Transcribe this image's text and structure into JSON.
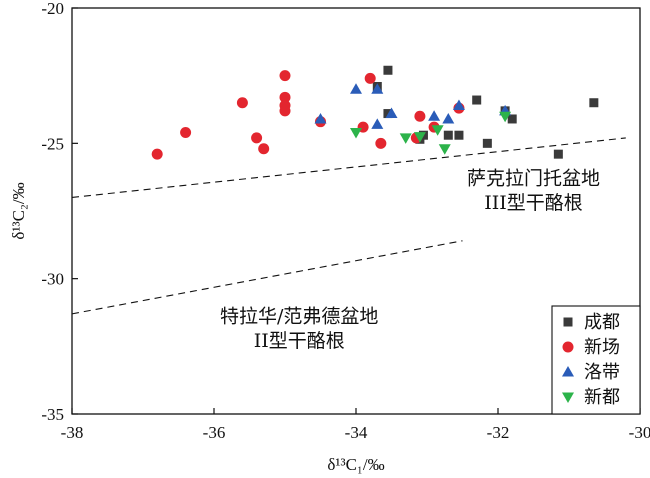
{
  "chart_data": {
    "type": "scatter",
    "xlabel": "δ¹³C₁/‰",
    "ylabel": "δ¹³C₂/‰",
    "xlim": [
      -38,
      -30
    ],
    "ylim": [
      -35,
      -20
    ],
    "xticks": [
      -38,
      -36,
      -34,
      -32,
      -30
    ],
    "yticks": [
      -35,
      -30,
      -25,
      -20
    ],
    "legend_position": "bottom-right",
    "series": [
      {
        "name": "成都",
        "marker": "square",
        "color": "#3a3a3a",
        "points": [
          [
            -33.55,
            -22.3
          ],
          [
            -33.7,
            -22.9
          ],
          [
            -33.55,
            -23.9
          ],
          [
            -33.1,
            -24.85
          ],
          [
            -33.05,
            -24.7
          ],
          [
            -32.7,
            -24.7
          ],
          [
            -32.55,
            -24.7
          ],
          [
            -32.3,
            -23.4
          ],
          [
            -32.15,
            -25.0
          ],
          [
            -31.9,
            -23.8
          ],
          [
            -31.8,
            -24.1
          ],
          [
            -31.15,
            -25.4
          ],
          [
            -30.65,
            -23.5
          ]
        ]
      },
      {
        "name": "新场",
        "marker": "circle",
        "color": "#e3262f",
        "points": [
          [
            -36.8,
            -25.4
          ],
          [
            -36.4,
            -24.6
          ],
          [
            -35.6,
            -23.5
          ],
          [
            -35.4,
            -24.8
          ],
          [
            -35.3,
            -25.2
          ],
          [
            -35.0,
            -22.5
          ],
          [
            -35.0,
            -23.3
          ],
          [
            -35.0,
            -23.6
          ],
          [
            -35.0,
            -23.8
          ],
          [
            -34.5,
            -24.2
          ],
          [
            -33.9,
            -24.4
          ],
          [
            -33.8,
            -22.6
          ],
          [
            -33.65,
            -25.0
          ],
          [
            -33.15,
            -24.8
          ],
          [
            -33.1,
            -24.0
          ],
          [
            -32.9,
            -24.4
          ],
          [
            -32.55,
            -23.7
          ]
        ]
      },
      {
        "name": "洛带",
        "marker": "triangle-up",
        "color": "#2a5cb8",
        "points": [
          [
            -34.5,
            -24.1
          ],
          [
            -34.0,
            -23.0
          ],
          [
            -33.7,
            -23.0
          ],
          [
            -33.7,
            -24.3
          ],
          [
            -33.5,
            -23.9
          ],
          [
            -32.9,
            -24.0
          ],
          [
            -32.7,
            -24.1
          ],
          [
            -32.55,
            -23.6
          ],
          [
            -31.9,
            -23.8
          ]
        ]
      },
      {
        "name": "新都",
        "marker": "triangle-down",
        "color": "#2cb34a",
        "points": [
          [
            -34.0,
            -24.6
          ],
          [
            -33.3,
            -24.8
          ],
          [
            -33.1,
            -24.75
          ],
          [
            -32.85,
            -24.5
          ],
          [
            -32.75,
            -25.2
          ],
          [
            -31.9,
            -24.0
          ]
        ]
      }
    ],
    "boundary_lines": [
      {
        "x1": -38,
        "y1": -27.0,
        "x2": -30.2,
        "y2": -24.8
      },
      {
        "x1": -38,
        "y1": -31.3,
        "x2": -32.5,
        "y2": -28.6
      }
    ],
    "annotations": [
      {
        "line1": "萨克拉门托盆地",
        "line2": "III型干酪根",
        "x": -31.5,
        "y": -26.3,
        "y2": -27.2
      },
      {
        "line1": "特拉华/范弗德盆地",
        "line2": "II型干酪根",
        "x": -34.8,
        "y": -31.4,
        "y2": -32.3
      }
    ]
  }
}
